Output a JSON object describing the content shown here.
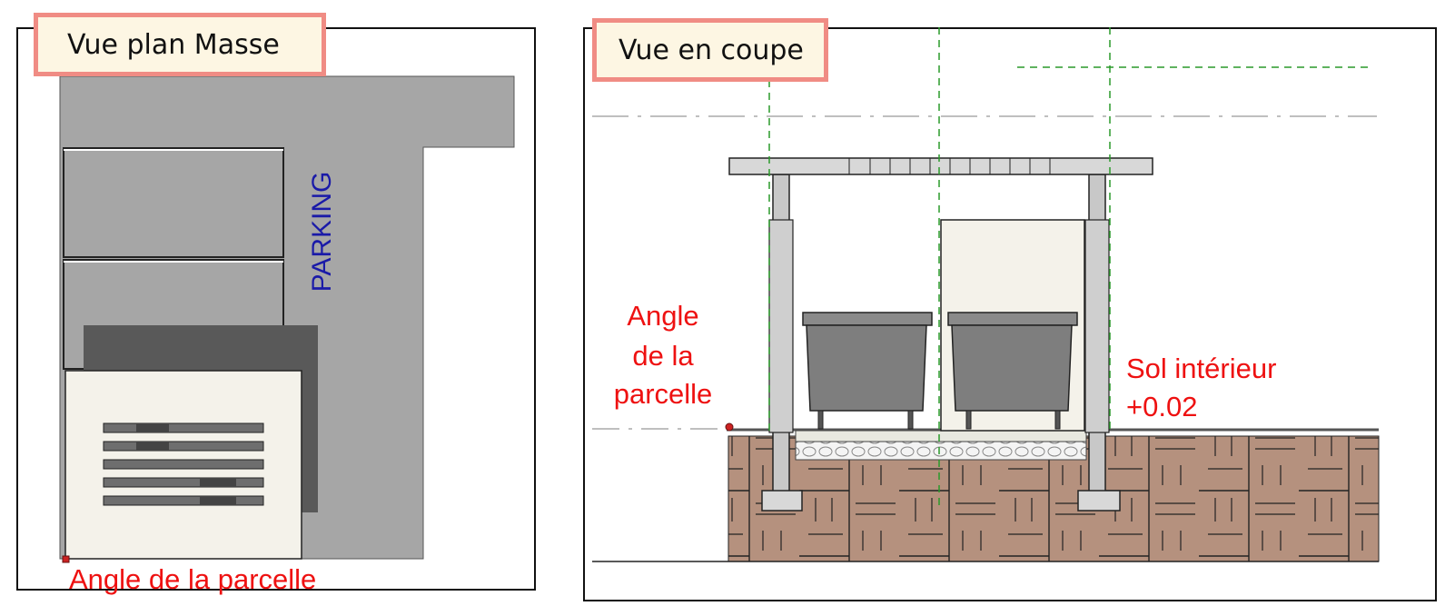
{
  "plan_view": {
    "title": "Vue plan Masse",
    "parking_label": "PARKING",
    "corner_label": "Angle de la parcelle"
  },
  "section_view": {
    "title": "Vue en coupe",
    "corner_label_line1": "Angle",
    "corner_label_line2": "de la",
    "corner_label_line3": "parcelle",
    "floor_label_line1": "Sol intérieur",
    "floor_label_line2": "+0.02"
  },
  "colors": {
    "title_border": "#f08c84",
    "title_bg": "#fdf6e3",
    "label_red": "#ee1111",
    "label_blue": "#1a1aa8",
    "ground_brown": "#b5917e",
    "guide_green": "#2a9a2a"
  }
}
